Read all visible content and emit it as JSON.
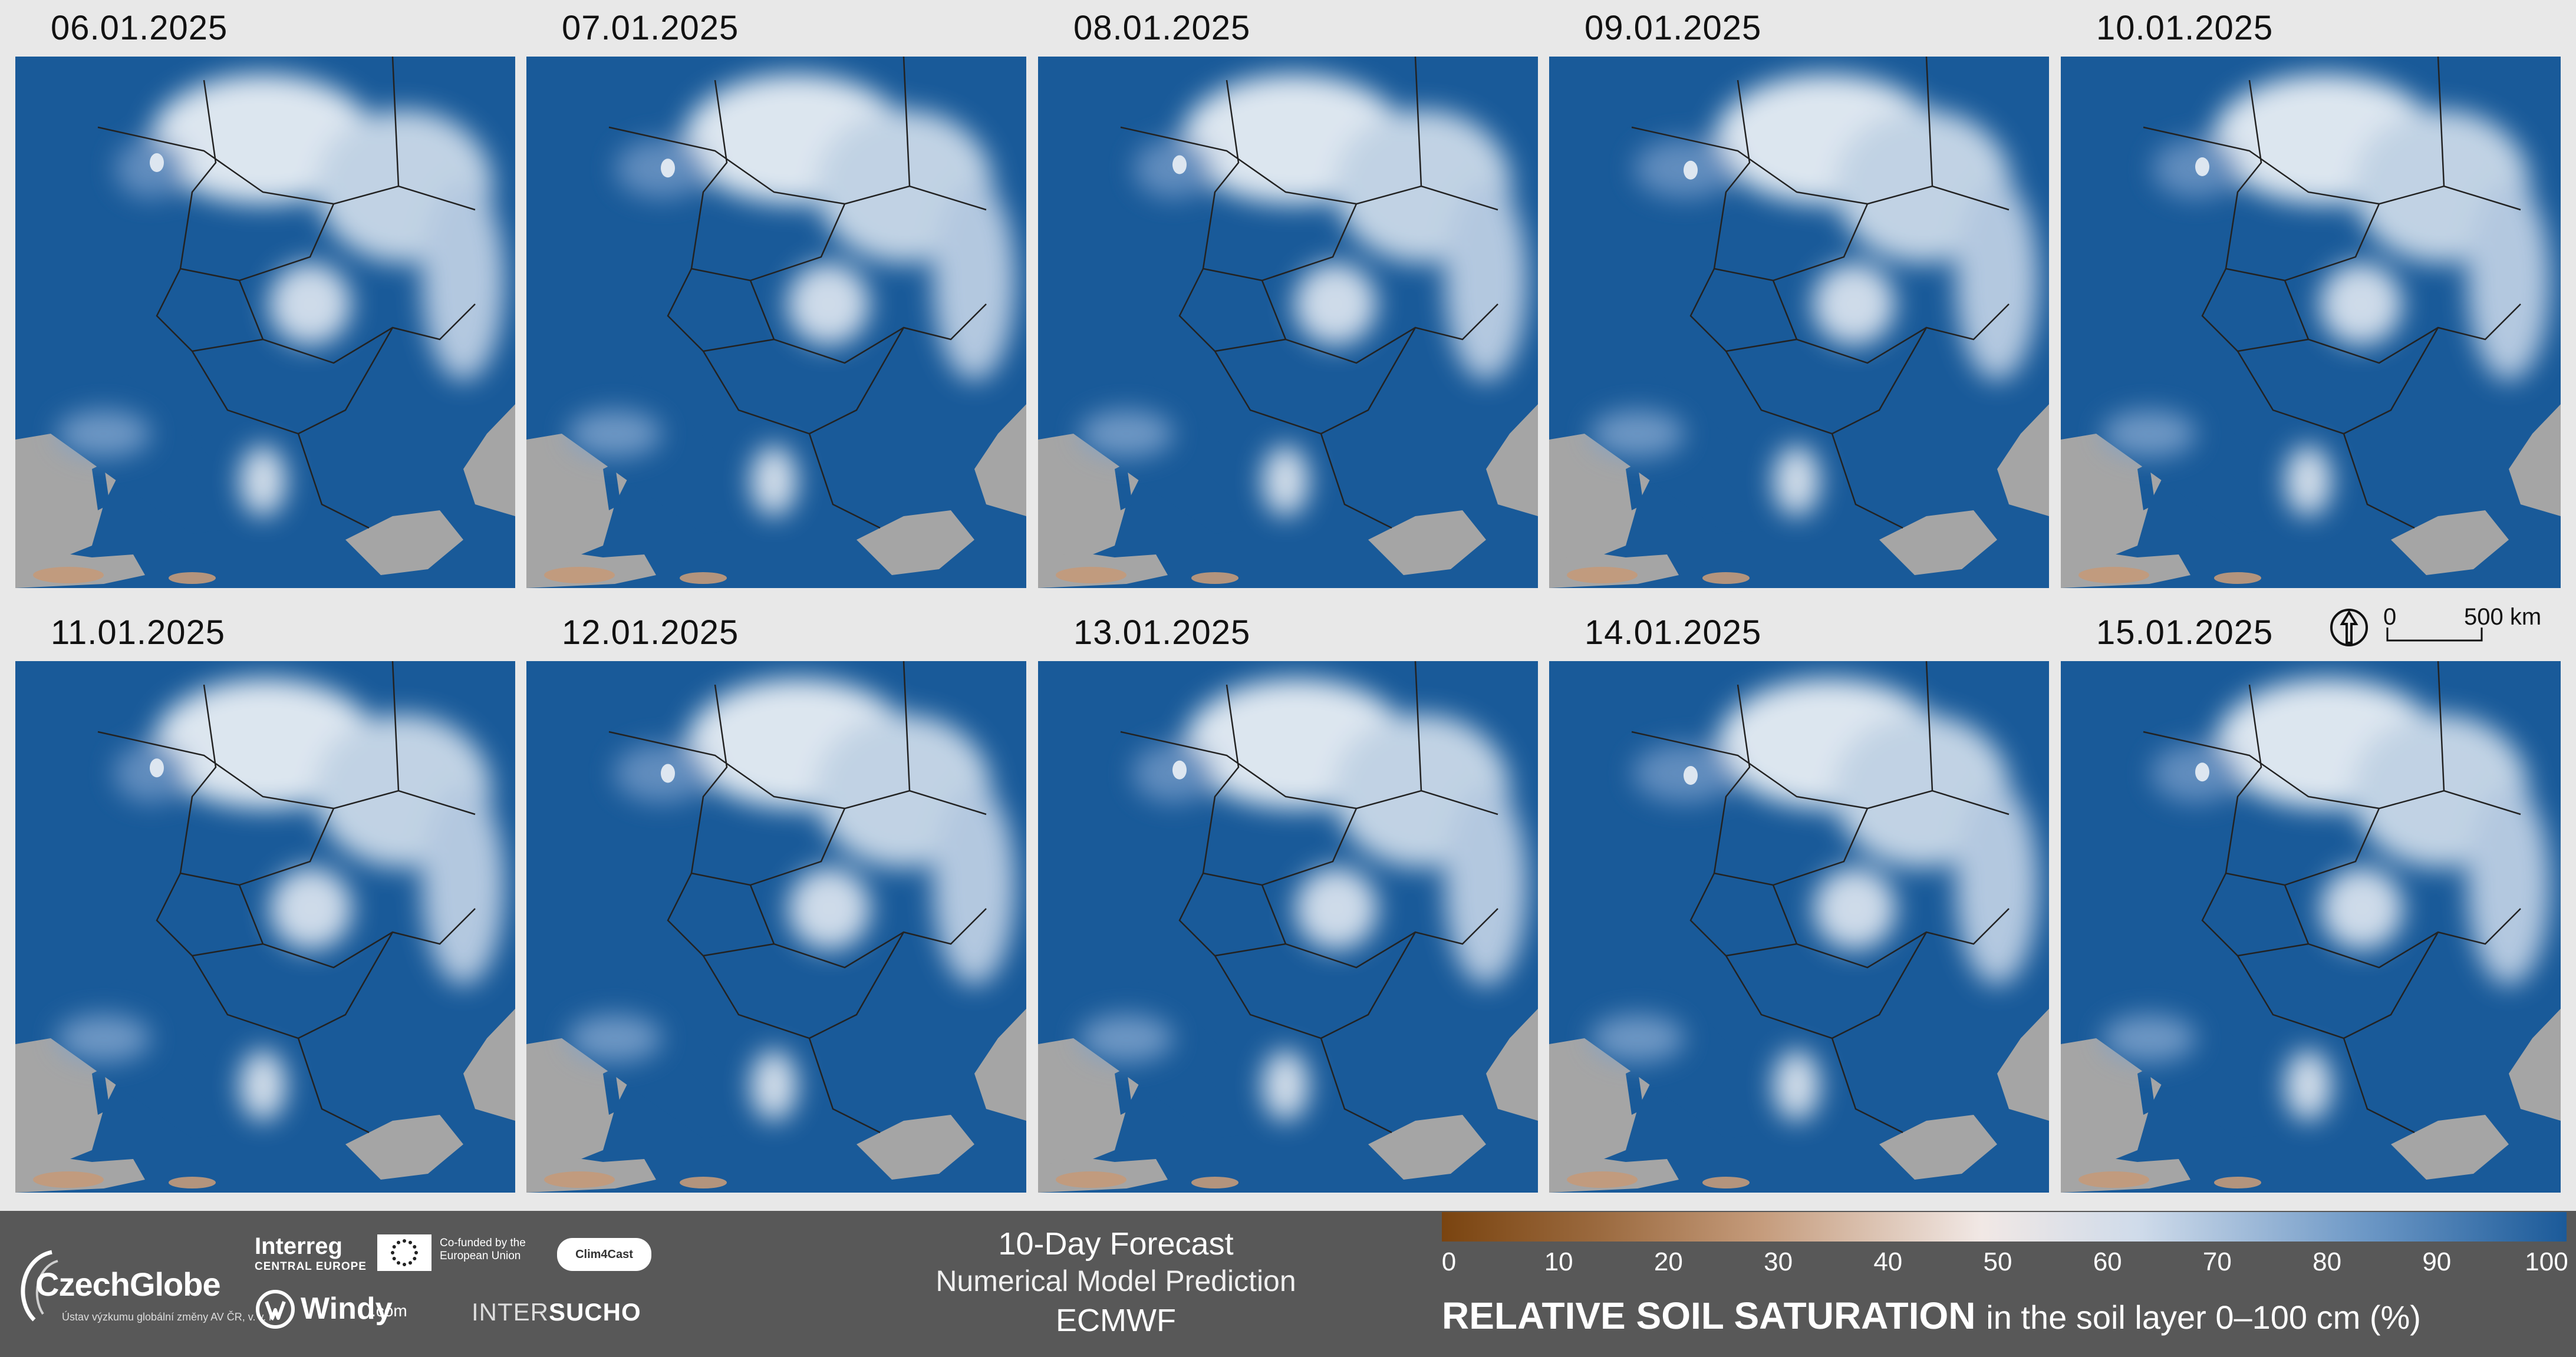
{
  "maps": {
    "dates": [
      "06.01.2025",
      "07.01.2025",
      "08.01.2025",
      "09.01.2025",
      "10.01.2025",
      "11.01.2025",
      "12.01.2025",
      "13.01.2025",
      "14.01.2025",
      "15.01.2025"
    ],
    "scale": {
      "zero": "0",
      "distance": "500 km"
    },
    "colors": {
      "ocean": "#a5a5a5",
      "wet": "#195a99",
      "dry": "#9b6a3f",
      "border": "#222222"
    }
  },
  "footer": {
    "czechglobe": {
      "name": "CzechGlobe",
      "sub": "Ústav výzkumu globální změny AV ČR, v. v. i."
    },
    "interreg": {
      "name": "Interreg",
      "sub": "CENTRAL EUROPE"
    },
    "cofunded": "Co-funded by the European Union",
    "clim4cast": "Clim4Cast",
    "windy": {
      "name": "Windy",
      "suffix": ".com"
    },
    "intersucho": {
      "a": "INTER",
      "b": "SUCHO"
    },
    "forecast": {
      "title": "10-Day Forecast",
      "subtitle": "Numerical Model Prediction",
      "model": "ECMWF"
    },
    "colorbar": {
      "ticks": [
        "0",
        "10",
        "20",
        "30",
        "40",
        "50",
        "60",
        "70",
        "80",
        "90",
        "100"
      ],
      "title_bold": "RELATIVE SOIL SATURATION",
      "title_rest": "in the soil layer 0–100 cm (%)"
    }
  }
}
